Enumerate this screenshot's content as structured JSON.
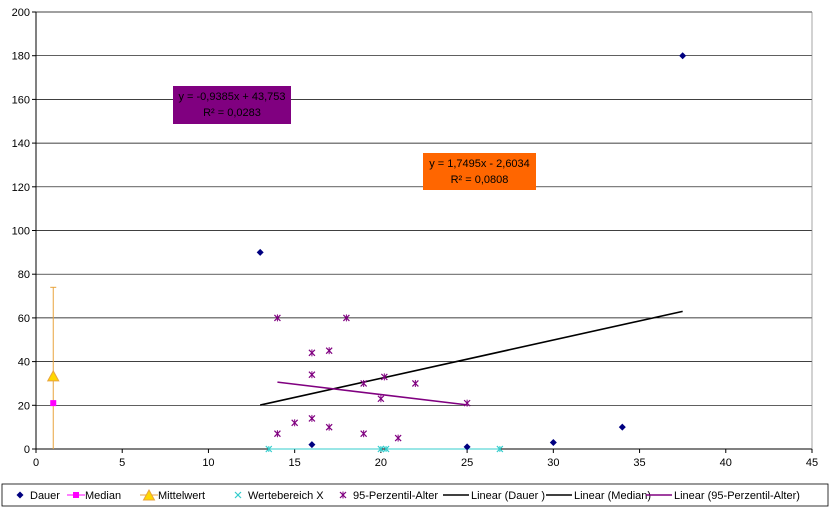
{
  "chart_data": {
    "type": "scatter",
    "title": "",
    "xlabel": "",
    "ylabel": "",
    "xlim": [
      0,
      45
    ],
    "ylim": [
      0,
      200
    ],
    "xticks": [
      0,
      5,
      10,
      15,
      20,
      25,
      30,
      35,
      40,
      45
    ],
    "yticks": [
      0,
      20,
      40,
      60,
      80,
      100,
      120,
      140,
      160,
      180,
      200
    ],
    "grid": "horizontal",
    "legend_position": "bottom",
    "series": [
      {
        "name": "Dauer",
        "marker": "diamond",
        "color": "#000080",
        "points": [
          [
            13,
            90
          ],
          [
            16,
            2
          ],
          [
            25,
            1
          ],
          [
            30,
            3
          ],
          [
            34,
            10
          ],
          [
            37.5,
            180
          ]
        ]
      },
      {
        "name": "Median",
        "marker": "square",
        "color": "#FF00FF",
        "points": [
          [
            1,
            21
          ]
        ]
      },
      {
        "name": "Mittelwert",
        "marker": "triangle",
        "color": "#FFD700",
        "stroke": "#E8A33D",
        "points": [
          [
            1,
            33
          ]
        ],
        "error_bar": {
          "low": 0,
          "high": 74,
          "color": "#E8A33D"
        }
      },
      {
        "name": "Wertebereich X",
        "marker": "x",
        "color": "#33CCCC",
        "points": [
          [
            13.5,
            0
          ],
          [
            20,
            0
          ],
          [
            20.3,
            0
          ],
          [
            26.9,
            0
          ]
        ],
        "range_lines": [
          [
            13.5,
            20.0
          ],
          [
            20.3,
            26.9
          ]
        ]
      },
      {
        "name": "95-Perzentil-Alter",
        "marker": "star",
        "color": "#800080",
        "points": [
          [
            14,
            7
          ],
          [
            14,
            60
          ],
          [
            15,
            12
          ],
          [
            16,
            14
          ],
          [
            16,
            34
          ],
          [
            16,
            44
          ],
          [
            17,
            10
          ],
          [
            17,
            45
          ],
          [
            18,
            60
          ],
          [
            19,
            7
          ],
          [
            19,
            30
          ],
          [
            20,
            23
          ],
          [
            20.2,
            33
          ],
          [
            21,
            5
          ],
          [
            22,
            30
          ],
          [
            25,
            21
          ]
        ]
      }
    ],
    "trendlines": [
      {
        "name": "Linear (Dauer )",
        "color": "#000000",
        "x": [
          13,
          37.5
        ],
        "y": [
          20.1,
          63
        ]
      },
      {
        "name": "Linear (Median)",
        "color": "#000000",
        "x": [],
        "y": []
      },
      {
        "name": "Linear (95-Perzentil-Alter)",
        "color": "#800080",
        "x": [
          14,
          25
        ],
        "y": [
          30.6,
          20.2
        ]
      }
    ],
    "annotations": [
      {
        "line1": "y = -0,9385x + 43,753",
        "line2": "R² = 0,0283",
        "bg": "#800080",
        "fg": "#000000"
      },
      {
        "line1": "y = 1,7495x - 2,6034",
        "line2": "R² = 0,0808",
        "bg": "#FF6600",
        "fg": "#000000"
      }
    ],
    "legend": [
      {
        "label": "Dauer",
        "kind": "diamond",
        "color": "#000080"
      },
      {
        "label": "Median",
        "kind": "square-line",
        "color": "#FF00FF"
      },
      {
        "label": "Mittelwert",
        "kind": "triangle-line",
        "color": "#E8A33D"
      },
      {
        "label": "Wertebereich X",
        "kind": "x",
        "color": "#33CCCC"
      },
      {
        "label": "95-Perzentil-Alter",
        "kind": "star",
        "color": "#800080"
      },
      {
        "label": "Linear (Dauer )",
        "kind": "line",
        "color": "#000000"
      },
      {
        "label": "Linear (Median)",
        "kind": "line",
        "color": "#000000"
      },
      {
        "label": "Linear (95-Perzentil-Alter)",
        "kind": "line",
        "color": "#800080"
      }
    ]
  }
}
